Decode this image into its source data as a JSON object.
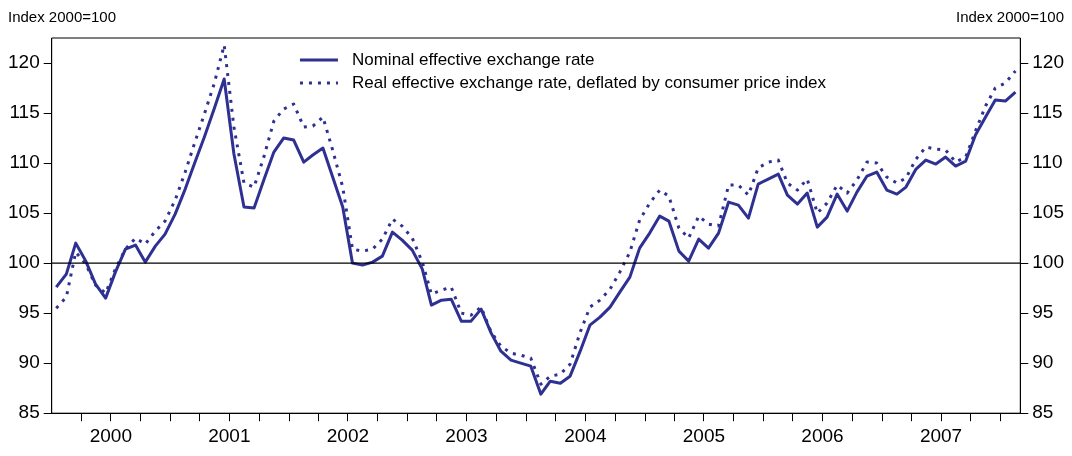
{
  "chart_data": {
    "type": "line",
    "ylabel": "Index 2000=100",
    "y2label": "Index 2000=100",
    "x": [
      "2000-01-15",
      "2000-02-15",
      "2000-03-15",
      "2000-04-15",
      "2000-05-15",
      "2000-06-15",
      "2000-07-15",
      "2000-08-15",
      "2000-09-15",
      "2000-10-15",
      "2000-11-15",
      "2000-12-15",
      "2001-01-15",
      "2001-02-15",
      "2001-03-15",
      "2001-04-15",
      "2001-05-15",
      "2001-06-15",
      "2001-07-15",
      "2001-08-15",
      "2001-09-15",
      "2001-10-15",
      "2001-11-15",
      "2001-12-15",
      "2002-01-15",
      "2002-02-15",
      "2002-03-15",
      "2002-04-15",
      "2002-05-15",
      "2002-06-15",
      "2002-07-15",
      "2002-08-15",
      "2002-09-15",
      "2002-10-15",
      "2002-11-15",
      "2002-12-15",
      "2003-01-15",
      "2003-02-15",
      "2003-03-15",
      "2003-04-15",
      "2003-05-15",
      "2003-06-15",
      "2003-07-15",
      "2003-08-15",
      "2003-09-15",
      "2003-10-15",
      "2003-11-15",
      "2003-12-15",
      "2004-01-15",
      "2004-02-15",
      "2004-03-15",
      "2004-04-15",
      "2004-05-15",
      "2004-06-15",
      "2004-07-15",
      "2004-08-15",
      "2004-09-15",
      "2004-10-15",
      "2004-11-15",
      "2004-12-15",
      "2005-01-15",
      "2005-02-15",
      "2005-03-15",
      "2005-04-15",
      "2005-05-15",
      "2005-06-15",
      "2005-07-15",
      "2005-08-15",
      "2005-09-15",
      "2005-10-15",
      "2005-11-15",
      "2005-12-15",
      "2006-01-15",
      "2006-02-15",
      "2006-03-15",
      "2006-04-15",
      "2006-05-15",
      "2006-06-15",
      "2006-07-15",
      "2006-08-15",
      "2006-09-15",
      "2006-10-15",
      "2006-11-15",
      "2006-12-15",
      "2007-01-15",
      "2007-02-15",
      "2007-03-15",
      "2007-04-15",
      "2007-05-15",
      "2007-06-15",
      "2007-07-15",
      "2007-08-15",
      "2007-09-15",
      "2007-10-15",
      "2007-11-15",
      "2007-12-15",
      "2008-01-15",
      "2008-02-15"
    ],
    "series": [
      {
        "name": "Nominal effective exchange rate",
        "color": "#2e3192",
        "line_style": "solid",
        "values": [
          97.6,
          98.9,
          102.0,
          100.2,
          97.9,
          96.5,
          99.1,
          101.4,
          101.8,
          100.1,
          101.7,
          102.9,
          104.9,
          107.4,
          109.9,
          112.6,
          115.4,
          118.4,
          110.9,
          105.6,
          105.5,
          108.3,
          111.1,
          112.5,
          112.3,
          110.1,
          110.8,
          111.5,
          108.6,
          105.6,
          100.0,
          99.8,
          100.1,
          100.7,
          103.1,
          102.3,
          101.3,
          99.4,
          95.8,
          96.3,
          96.4,
          94.2,
          94.2,
          95.4,
          93.0,
          91.2,
          90.3,
          90.0,
          89.7,
          86.9,
          88.2,
          88.0,
          88.7,
          91.2,
          93.8,
          94.6,
          95.6,
          97.1,
          98.6,
          101.5,
          103.0,
          104.7,
          104.2,
          101.2,
          100.2,
          102.4,
          101.5,
          103.0,
          106.1,
          105.8,
          104.5,
          107.9,
          108.4,
          108.9,
          106.8,
          105.9,
          107.0,
          103.6,
          104.6,
          106.9,
          105.2,
          107.1,
          108.7,
          109.1,
          107.3,
          106.9,
          107.6,
          109.4,
          110.3,
          109.9,
          110.6,
          109.7,
          110.2,
          112.8,
          114.6,
          116.3,
          116.2,
          117.1
        ]
      },
      {
        "name": "Real effective exchange rate, deflated by consumer price index",
        "color": "#2e3192",
        "line_style": "dotted",
        "values": [
          95.5,
          96.6,
          101.1,
          99.9,
          97.8,
          97.0,
          99.4,
          101.4,
          102.5,
          101.9,
          103.2,
          104.2,
          106.3,
          109.1,
          111.9,
          114.9,
          117.9,
          121.8,
          113.6,
          108.0,
          107.6,
          110.6,
          114.2,
          115.4,
          115.9,
          113.6,
          113.7,
          114.6,
          111.3,
          107.6,
          101.4,
          101.2,
          101.4,
          102.4,
          104.4,
          103.7,
          102.5,
          100.1,
          96.9,
          97.3,
          97.6,
          95.0,
          94.8,
          95.6,
          93.1,
          91.7,
          91.0,
          90.8,
          90.5,
          87.9,
          88.7,
          88.9,
          89.9,
          93.1,
          95.6,
          96.3,
          97.4,
          99.1,
          101.1,
          104.3,
          106.0,
          107.3,
          106.7,
          103.5,
          102.5,
          104.7,
          103.9,
          103.7,
          107.8,
          107.8,
          106.8,
          109.5,
          110.1,
          110.3,
          108.0,
          107.3,
          108.4,
          105.0,
          106.0,
          107.8,
          107.0,
          108.3,
          110.1,
          110.0,
          108.6,
          108.0,
          108.5,
          110.4,
          111.6,
          111.4,
          111.3,
          110.1,
          110.6,
          113.2,
          115.7,
          117.5,
          118.0,
          119.2
        ]
      }
    ],
    "xlim": [
      "2000-01-01",
      "2008-03-01"
    ],
    "xticks": [
      {
        "value": "2000-04-01",
        "label": null
      },
      {
        "value": "2000-07-01",
        "label": "2000"
      },
      {
        "value": "2000-10-01",
        "label": null
      },
      {
        "value": "2001-01-01",
        "label": null
      },
      {
        "value": "2001-04-01",
        "label": null
      },
      {
        "value": "2001-07-01",
        "label": "2001"
      },
      {
        "value": "2001-10-01",
        "label": null
      },
      {
        "value": "2002-01-01",
        "label": null
      },
      {
        "value": "2002-04-01",
        "label": null
      },
      {
        "value": "2002-07-01",
        "label": "2002"
      },
      {
        "value": "2002-10-01",
        "label": null
      },
      {
        "value": "2003-01-01",
        "label": null
      },
      {
        "value": "2003-04-01",
        "label": null
      },
      {
        "value": "2003-07-01",
        "label": "2003"
      },
      {
        "value": "2003-10-01",
        "label": null
      },
      {
        "value": "2004-01-01",
        "label": null
      },
      {
        "value": "2004-04-01",
        "label": null
      },
      {
        "value": "2004-07-01",
        "label": "2004"
      },
      {
        "value": "2004-10-01",
        "label": null
      },
      {
        "value": "2005-01-01",
        "label": null
      },
      {
        "value": "2005-04-01",
        "label": null
      },
      {
        "value": "2005-07-01",
        "label": "2005"
      },
      {
        "value": "2005-10-01",
        "label": null
      },
      {
        "value": "2006-01-01",
        "label": null
      },
      {
        "value": "2006-04-01",
        "label": null
      },
      {
        "value": "2006-07-01",
        "label": "2006"
      },
      {
        "value": "2006-10-01",
        "label": null
      },
      {
        "value": "2007-01-01",
        "label": null
      },
      {
        "value": "2007-04-01",
        "label": null
      },
      {
        "value": "2007-07-01",
        "label": "2007"
      },
      {
        "value": "2007-10-01",
        "label": null
      },
      {
        "value": "2008-01-01",
        "label": null
      }
    ],
    "ylim": [
      85,
      122.5
    ],
    "yticks": [
      85,
      90,
      95,
      100,
      105,
      110,
      115,
      120
    ],
    "y2lim": [
      85,
      122.5
    ],
    "y2ticks": [
      85,
      90,
      95,
      100,
      105,
      110,
      115,
      120
    ],
    "ref_lines": [
      {
        "axis": "y",
        "value": 100,
        "color": "#000000"
      }
    ],
    "legend": "top",
    "grid": false
  }
}
